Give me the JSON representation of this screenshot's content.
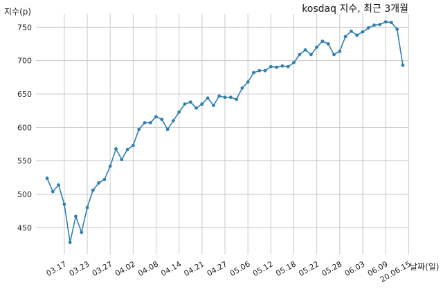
{
  "chart_data": {
    "type": "line",
    "title": "kosdaq 지수, 최근 3개월",
    "ylabel": "지수(p)",
    "xlabel": "날짜(일)",
    "ylim": [
      410,
      770
    ],
    "yticks": [
      450,
      500,
      550,
      600,
      650,
      700,
      750
    ],
    "xtick_labels": [
      "03.17",
      "03.23",
      "03.27",
      "04.02",
      "04.08",
      "04.14",
      "04.21",
      "04.27",
      "05.06",
      "05.12",
      "05.18",
      "05.22",
      "05.28",
      "06.03",
      "06.09",
      "20.06.15"
    ],
    "xtick_indices": [
      3,
      7,
      11,
      15,
      19,
      23,
      27,
      31,
      35,
      39,
      43,
      47,
      51,
      55,
      59,
      63
    ],
    "grid": true,
    "line_color": "#2f7fb1",
    "series": [
      {
        "name": "",
        "values": [
          524,
          504,
          514,
          485,
          428,
          467,
          443,
          480,
          506,
          517,
          522,
          542,
          568,
          552,
          567,
          573,
          597,
          607,
          607,
          616,
          612,
          597,
          610,
          623,
          635,
          638,
          629,
          635,
          644,
          633,
          647,
          645,
          645,
          642,
          659,
          668,
          682,
          685,
          685,
          691,
          690,
          692,
          691,
          697,
          709,
          716,
          709,
          720,
          729,
          725,
          709,
          714,
          736,
          744,
          738,
          743,
          749,
          753,
          754,
          758,
          757,
          747,
          693
        ]
      }
    ]
  }
}
